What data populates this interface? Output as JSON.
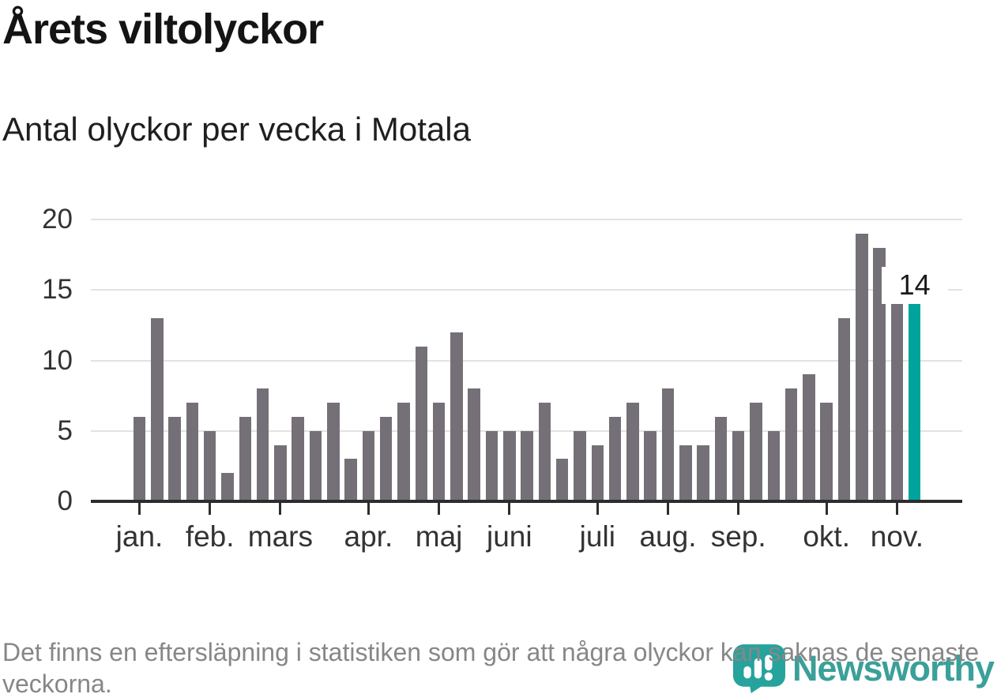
{
  "header": {
    "title": "Årets viltolyckor",
    "subtitle": "Antal olyckor per vecka i Motala"
  },
  "footer": {
    "note": "Det finns en eftersläpning i statistiken som gör att några olyckor kan saknas de senaste veckorna.",
    "logo_text": "Newsworthy"
  },
  "chart_data": {
    "type": "bar",
    "title": "Årets viltolyckor",
    "subtitle": "Antal olyckor per vecka i Motala",
    "ylabel": "",
    "xlabel": "",
    "x_unit": "vecka (en stapel per vecka, jan.–nov.)",
    "values": [
      6,
      13,
      6,
      7,
      5,
      2,
      6,
      8,
      4,
      6,
      5,
      7,
      3,
      5,
      6,
      7,
      11,
      7,
      12,
      8,
      5,
      5,
      5,
      7,
      3,
      5,
      4,
      6,
      7,
      5,
      8,
      4,
      4,
      6,
      5,
      7,
      5,
      8,
      9,
      7,
      13,
      19,
      18,
      14,
      14
    ],
    "highlight_index": 44,
    "annotation": {
      "text": "14"
    },
    "months": [
      {
        "label": "jan.",
        "week": 0
      },
      {
        "label": "feb.",
        "week": 4
      },
      {
        "label": "mars",
        "week": 8
      },
      {
        "label": "apr.",
        "week": 13
      },
      {
        "label": "maj",
        "week": 17
      },
      {
        "label": "juni",
        "week": 21
      },
      {
        "label": "juli",
        "week": 26
      },
      {
        "label": "aug.",
        "week": 30
      },
      {
        "label": "sep.",
        "week": 34
      },
      {
        "label": "okt.",
        "week": 39
      },
      {
        "label": "nov.",
        "week": 43
      }
    ],
    "y_ticks": [
      0,
      5,
      10,
      15,
      20
    ],
    "ylim": [
      0,
      21.1
    ],
    "grid": "horizontal",
    "legend": "none",
    "colors": {
      "bar": "#757077",
      "highlight": "#00a49c",
      "axis": "#2d2d2d",
      "gridline": "#e2e2e2",
      "logo": "#3aa099",
      "logo_icon": "#25a39c"
    }
  }
}
